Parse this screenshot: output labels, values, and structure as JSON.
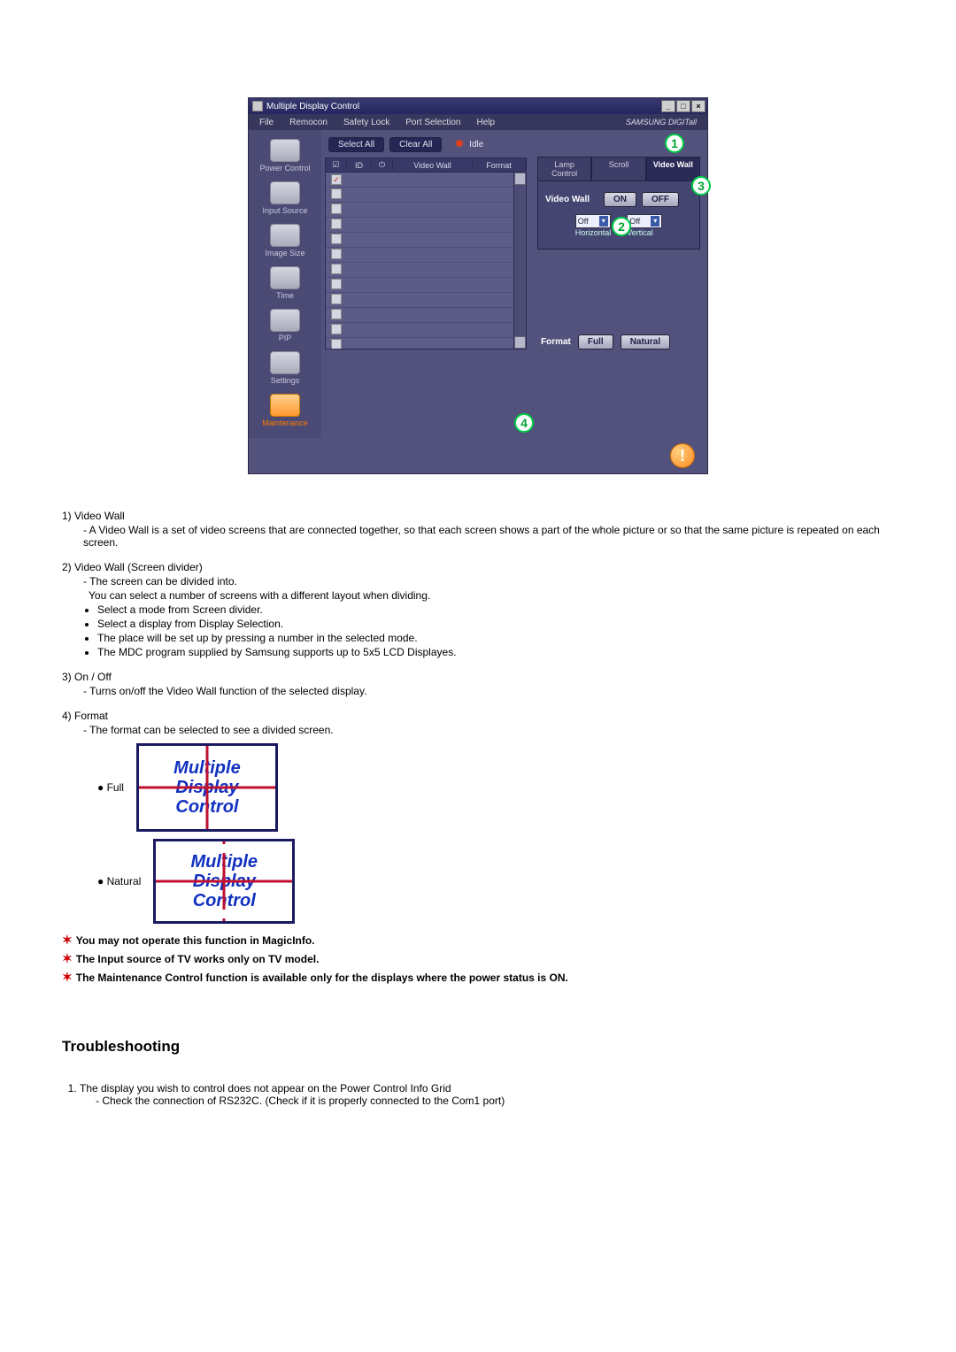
{
  "window": {
    "title": "Multiple Display Control",
    "menus": [
      "File",
      "Remocon",
      "Safety Lock",
      "Port Selection",
      "Help"
    ],
    "brand": "SAMSUNG DIGITall"
  },
  "sidebar": {
    "items": [
      {
        "label": "Power Control"
      },
      {
        "label": "Input Source"
      },
      {
        "label": "Image Size"
      },
      {
        "label": "Time"
      },
      {
        "label": "PIP"
      },
      {
        "label": "Settings"
      },
      {
        "label": "Maintenance"
      }
    ]
  },
  "toolbar": {
    "select_all": "Select All",
    "clear_all": "Clear All",
    "idle": "Idle"
  },
  "list": {
    "headers": {
      "chk": "☑",
      "id": "ID",
      "pwr": "⏻",
      "videowall": "Video Wall",
      "format": "Format"
    },
    "rows": 12
  },
  "right": {
    "tabs": {
      "lamp": "Lamp Control",
      "scroll": "Scroll",
      "videowall": "Video Wall"
    },
    "videowall_label": "Video Wall",
    "on": "ON",
    "off": "OFF",
    "horiz_val": "Off",
    "horiz_lbl": "Horizontal",
    "vert_val": "Off",
    "vert_lbl": "Vertical",
    "format_lbl": "Format",
    "full": "Full",
    "natural": "Natural"
  },
  "callouts": {
    "c1": "1",
    "c2": "2",
    "c3": "3",
    "c4": "4"
  },
  "doc": {
    "n1_t": "1) Video Wall",
    "n1_s": "- A Video Wall is a set of video screens that are connected together, so that each screen shows a part of the whole picture or so that the same picture is repeated on each screen.",
    "n2_t": "2)  Video Wall (Screen divider)",
    "n2_s1": "- The screen can be divided into.",
    "n2_s2": "You can select a number of screens with a different layout when dividing.",
    "n2_b": [
      "Select a mode from Screen divider.",
      "Select a display from Display Selection.",
      "The place will be set up by pressing a number in the selected mode.",
      "The MDC program supplied by Samsung supports up to 5x5 LCD Displayes."
    ],
    "n3_t": "3)  On / Off",
    "n3_s": "- Turns on/off the Video Wall function of the selected display.",
    "n4_t": "4)  Format",
    "n4_s": "- The format can be selected to see a divided screen.",
    "full_label": "Full",
    "natural_label": "Natural",
    "word1": "Multiple",
    "word2": "Display",
    "word3": "Control",
    "stars": [
      "You may not operate this function in MagicInfo.",
      "The Input source of TV works only on TV model.",
      "The Maintenance Control function is available only for the displays where the power status is ON."
    ],
    "ts_heading": "Troubleshooting",
    "ts1": "The display you wish to control does not appear on the Power Control Info Grid",
    "ts1_s": "- Check the connection of RS232C. (Check if it is properly connected to the Com1 port)"
  },
  "colors": {
    "callout_ring": "#00cc44",
    "accent_orange": "#ff7a00",
    "star_red": "#d00000"
  }
}
